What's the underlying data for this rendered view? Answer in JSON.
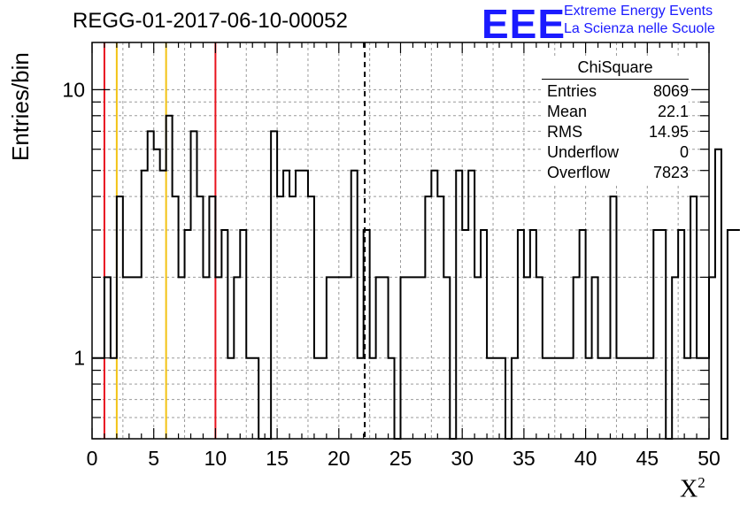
{
  "title": "REGG-01-2017-06-10-00052",
  "logo": {
    "mark": "EEE",
    "line1": "Extreme Energy Events",
    "line2": "La Scienza nelle Scuole",
    "color": "#1a1aff"
  },
  "stats": {
    "title": "ChiSquare",
    "rows": [
      {
        "label": "Entries",
        "value": "8069"
      },
      {
        "label": "Mean",
        "value": "22.1"
      },
      {
        "label": "RMS",
        "value": "14.95"
      },
      {
        "label": "Underflow",
        "value": "0"
      },
      {
        "label": "Overflow",
        "value": "7823"
      }
    ]
  },
  "chart_data": {
    "type": "histogram",
    "title": "REGG-01-2017-06-10-00052",
    "xlabel": "X²",
    "ylabel": "Entries/bin",
    "xlim": [
      0,
      50
    ],
    "ylim": [
      0.5,
      15
    ],
    "yscale": "log",
    "grid": true,
    "bin_width": 0.5,
    "xticks": [
      "0",
      "5",
      "10",
      "15",
      "20",
      "25",
      "30",
      "35",
      "40",
      "45",
      "50"
    ],
    "yticks": [
      {
        "value": 1,
        "label": "1"
      },
      {
        "value": 10,
        "label": "10"
      }
    ],
    "bin_counts": [
      1,
      1,
      2,
      1,
      4,
      2,
      2,
      2,
      5,
      7,
      6,
      5,
      8,
      4,
      2,
      3,
      7,
      4,
      2,
      4,
      2,
      3,
      1,
      2,
      3,
      1,
      1,
      0,
      0,
      7,
      4,
      5,
      4,
      5,
      5,
      4,
      1,
      1,
      2,
      2,
      2,
      2,
      5,
      1,
      3,
      1,
      2,
      2,
      1,
      0,
      2,
      2,
      2,
      2,
      4,
      5,
      4,
      2,
      0,
      5,
      3,
      5,
      2,
      3,
      1,
      1,
      1,
      0,
      1,
      3,
      2,
      3,
      2,
      1,
      1,
      1,
      1,
      1,
      2,
      3,
      1,
      2,
      1,
      1,
      4,
      1,
      1,
      1,
      1,
      1,
      1,
      3,
      3,
      0,
      2,
      3,
      1,
      4,
      1,
      1,
      2,
      6,
      0,
      3,
      3
    ],
    "vertical_lines": [
      {
        "x": 1,
        "color": "#e8141e",
        "style": "solid"
      },
      {
        "x": 2,
        "color": "#f2c314",
        "style": "solid"
      },
      {
        "x": 6,
        "color": "#f2c314",
        "style": "solid"
      },
      {
        "x": 10,
        "color": "#e8141e",
        "style": "solid"
      },
      {
        "x": 22.1,
        "color": "#000000",
        "style": "dashed"
      }
    ]
  }
}
